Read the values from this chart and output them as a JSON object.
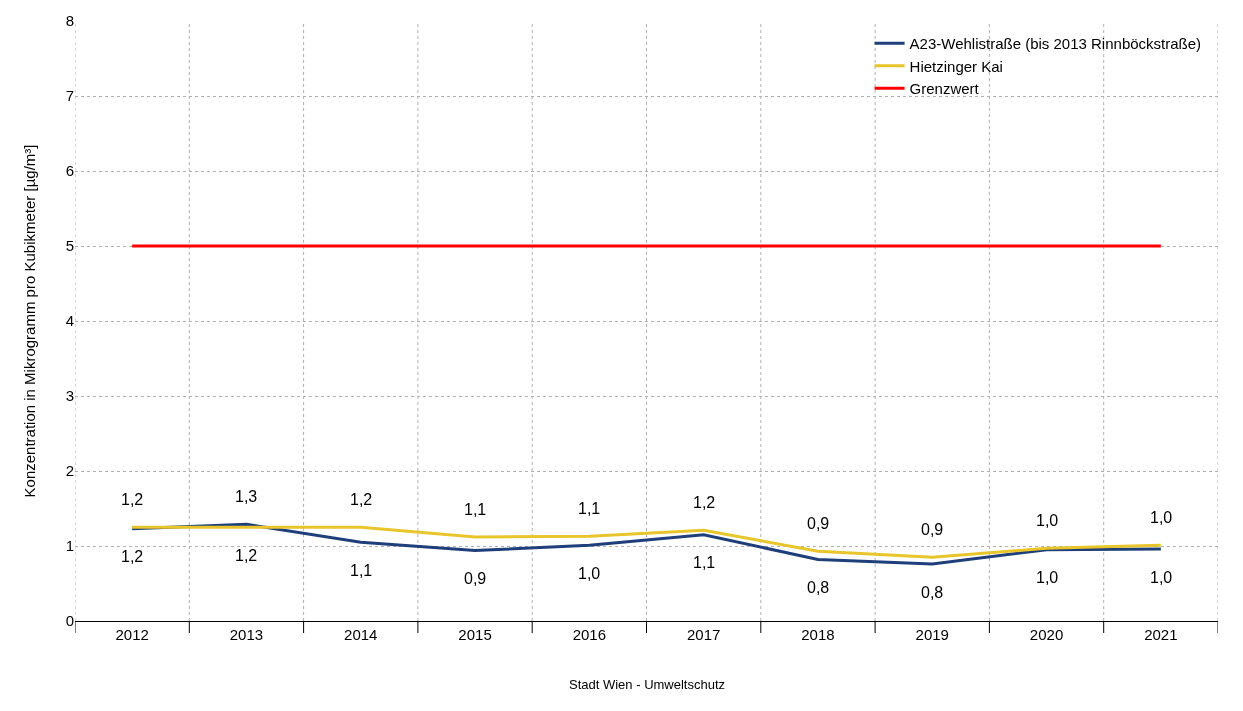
{
  "chart_data": {
    "type": "line",
    "ylabel": "Konzentration in Mikrogramm pro Kubikmeter [µg/m³]",
    "categories": [
      "2012",
      "2013",
      "2014",
      "2015",
      "2016",
      "2017",
      "2018",
      "2019",
      "2020",
      "2021"
    ],
    "series": [
      {
        "name": "A23-Wehlistraße (bis 2013 Rinnböckstraße)",
        "color": "#1f3f7a",
        "values": [
          1.23,
          1.29,
          1.05,
          0.94,
          1.01,
          1.15,
          0.82,
          0.76,
          0.95,
          0.96
        ],
        "value_labels": [
          "1,2",
          "1,3",
          "1,1",
          "0,9",
          "1,0",
          "1,1",
          "0,8",
          "0,8",
          "1,0",
          "1,0"
        ]
      },
      {
        "name": "Hietzinger Kai",
        "color": "#e8c52a",
        "values": [
          1.25,
          1.25,
          1.25,
          1.12,
          1.13,
          1.21,
          0.93,
          0.85,
          0.97,
          1.01
        ],
        "value_labels": [
          "1,2",
          "1,2",
          "1,2",
          "1,1",
          "1,1",
          "1,2",
          "0,9",
          "0,9",
          "1,0",
          "1,0"
        ]
      },
      {
        "name": "Grenzwert",
        "color": "#ff0000",
        "values": [
          5,
          5,
          5,
          5,
          5,
          5,
          5,
          5,
          5,
          5
        ]
      }
    ],
    "ylim": [
      0,
      8
    ],
    "yticks": [
      0,
      1,
      2,
      3,
      4,
      5,
      6,
      7,
      8
    ],
    "grid": true,
    "legend": "top right",
    "annotations": [
      "Stadt Wien - Umweltschutz"
    ]
  }
}
